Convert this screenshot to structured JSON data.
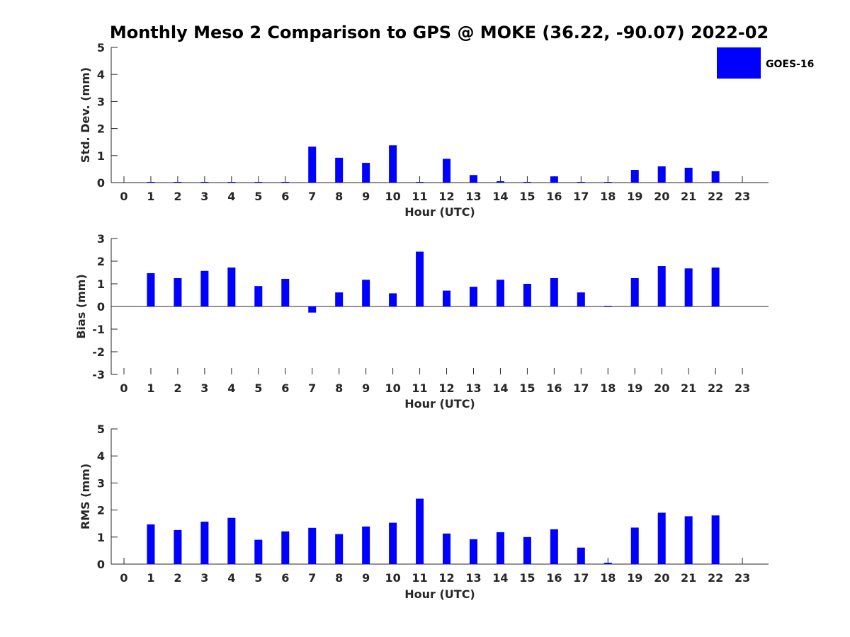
{
  "title": "Monthly Meso 2 Comparison to GPS @ MOKE (36.22, -90.07) 2022-02",
  "legend": {
    "label": "GOES-16",
    "color": "#0000ff"
  },
  "chart_data": [
    {
      "type": "bar",
      "xlabel": "Hour (UTC)",
      "ylabel": "Std. Dev. (mm)",
      "ylim": [
        0,
        5
      ],
      "yticks": [
        0,
        1,
        2,
        3,
        4,
        5
      ],
      "categories": [
        "0",
        "1",
        "2",
        "3",
        "4",
        "5",
        "6",
        "7",
        "8",
        "9",
        "10",
        "11",
        "12",
        "13",
        "14",
        "15",
        "16",
        "17",
        "18",
        "19",
        "20",
        "21",
        "22",
        "23"
      ],
      "series": [
        {
          "name": "GOES-16",
          "color": "#0000ff",
          "values": [
            null,
            0,
            0,
            0,
            0,
            0,
            0,
            1.33,
            0.92,
            0.73,
            1.38,
            0,
            0.88,
            0.28,
            0.05,
            0,
            0.23,
            0,
            0,
            0.47,
            0.6,
            0.55,
            0.42,
            null
          ]
        }
      ]
    },
    {
      "type": "bar",
      "xlabel": "Hour (UTC)",
      "ylabel": "Bias (mm)",
      "ylim": [
        -3,
        3
      ],
      "yticks": [
        -3,
        -2,
        -1,
        0,
        1,
        2,
        3
      ],
      "categories": [
        "0",
        "1",
        "2",
        "3",
        "4",
        "5",
        "6",
        "7",
        "8",
        "9",
        "10",
        "11",
        "12",
        "13",
        "14",
        "15",
        "16",
        "17",
        "18",
        "19",
        "20",
        "21",
        "22",
        "23"
      ],
      "series": [
        {
          "name": "GOES-16",
          "color": "#0000ff",
          "values": [
            null,
            1.47,
            1.25,
            1.57,
            1.72,
            0.9,
            1.22,
            -0.27,
            0.62,
            1.18,
            0.58,
            2.42,
            0.7,
            0.87,
            1.18,
            1.0,
            1.25,
            0.62,
            0,
            1.25,
            1.78,
            1.68,
            1.72,
            null
          ]
        }
      ]
    },
    {
      "type": "bar",
      "xlabel": "Hour (UTC)",
      "ylabel": "RMS (mm)",
      "ylim": [
        0,
        5
      ],
      "yticks": [
        0,
        1,
        2,
        3,
        4,
        5
      ],
      "categories": [
        "0",
        "1",
        "2",
        "3",
        "4",
        "5",
        "6",
        "7",
        "8",
        "9",
        "10",
        "11",
        "12",
        "13",
        "14",
        "15",
        "16",
        "17",
        "18",
        "19",
        "20",
        "21",
        "22",
        "23"
      ],
      "series": [
        {
          "name": "GOES-16",
          "color": "#0000ff",
          "values": [
            null,
            1.47,
            1.26,
            1.57,
            1.71,
            0.9,
            1.21,
            1.34,
            1.11,
            1.39,
            1.53,
            2.42,
            1.13,
            0.92,
            1.18,
            1.0,
            1.29,
            0.61,
            0.05,
            1.35,
            1.9,
            1.77,
            1.8,
            null
          ]
        }
      ]
    }
  ]
}
